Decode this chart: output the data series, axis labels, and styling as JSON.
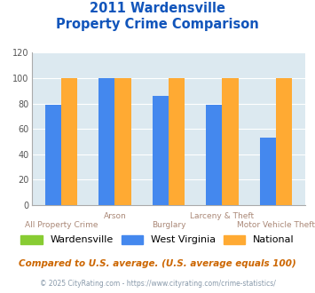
{
  "title_line1": "2011 Wardensville",
  "title_line2": "Property Crime Comparison",
  "categories": [
    "All Property Crime",
    "Arson",
    "Burglary",
    "Larceny & Theft",
    "Motor Vehicle Theft"
  ],
  "wardensville": [
    0,
    0,
    0,
    0,
    0
  ],
  "west_virginia": [
    79,
    100,
    86,
    79,
    53
  ],
  "national": [
    100,
    100,
    100,
    100,
    100
  ],
  "color_wardensville": "#88cc33",
  "color_west_virginia": "#4488ee",
  "color_national": "#ffaa33",
  "ylim": [
    0,
    120
  ],
  "yticks": [
    0,
    20,
    40,
    60,
    80,
    100,
    120
  ],
  "plot_bg": "#dce9f0",
  "title_color": "#1155bb",
  "xlabel_color": "#aa8877",
  "footer_text": "Compared to U.S. average. (U.S. average equals 100)",
  "copyright_text": "© 2025 CityRating.com - https://www.cityrating.com/crime-statistics/",
  "legend_labels": [
    "Wardensville",
    "West Virginia",
    "National"
  ],
  "bar_width": 0.3
}
